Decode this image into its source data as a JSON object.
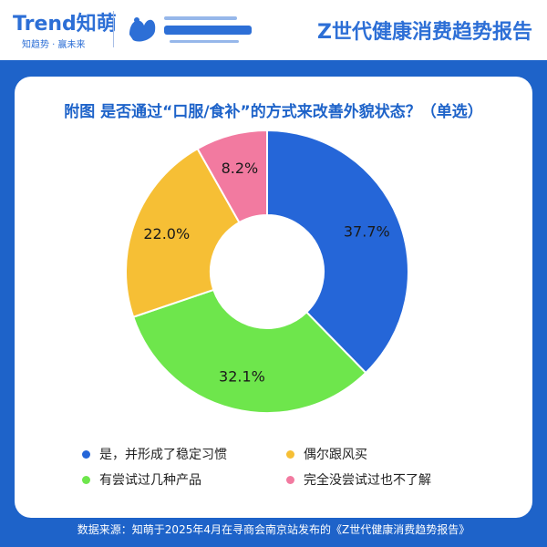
{
  "header": {
    "brand": "Trend知萌",
    "brand_sub": "知趋势 · 赢未来",
    "partner_logo_name": "partner-logo",
    "report_title": "Z世代健康消费趋势报告"
  },
  "question": "附图 是否通过“口服/食补”的方式来改善外貌状态？（单选）",
  "chart_data": {
    "type": "pie",
    "donut": true,
    "slices": [
      {
        "label": "是，并形成了稳定习惯",
        "value": 37.7,
        "display": "37.7%",
        "color": "#2566d8"
      },
      {
        "label": "有尝试过几种产品",
        "value": 32.1,
        "display": "32.1%",
        "color": "#6ee64c"
      },
      {
        "label": "偶尔跟风买",
        "value": 22.0,
        "display": "22.0%",
        "color": "#f6bf35"
      },
      {
        "label": "完全没尝试过也不了解",
        "value": 8.2,
        "display": "8.2%",
        "color": "#f27aa0"
      }
    ]
  },
  "legend": [
    {
      "label": "是，并形成了稳定习惯",
      "color": "#2566d8"
    },
    {
      "label": "偶尔跟风买",
      "color": "#f6bf35"
    },
    {
      "label": "有尝试过几种产品",
      "color": "#6ee64c"
    },
    {
      "label": "完全没尝试过也不了解",
      "color": "#f27aa0"
    }
  ],
  "footer": "数据来源：知萌于2025年4月在寻商会南京站发布的《Z世代健康消费趋势报告》"
}
